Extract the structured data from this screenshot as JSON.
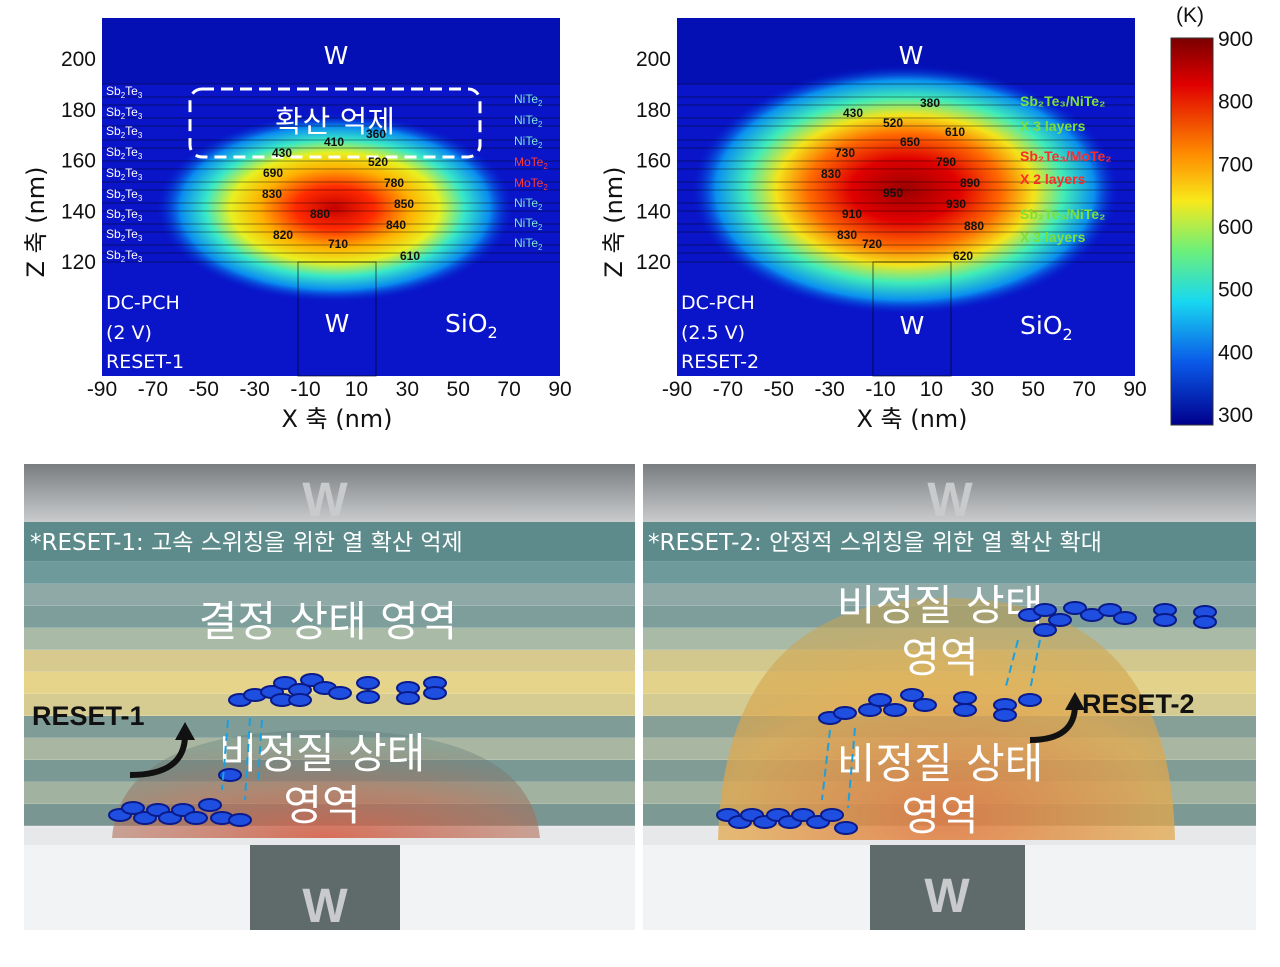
{
  "panel1": {
    "labels": {
      "w_top": "W",
      "w_bottom": "W",
      "sio2": "SiO",
      "sio2_sub": "2",
      "mode": "DC-PCH",
      "voltage": "(2 V)",
      "reset": "RESET-1",
      "box": "확산 억제"
    },
    "left_layers": [
      "Sb",
      "Sb",
      "Sb",
      "Sb",
      "Sb",
      "Sb",
      "Sb",
      "Sb",
      "Sb"
    ],
    "left_layer_suffix": "Te",
    "right_layers": [
      {
        "name": "NiTe",
        "color": "#7fe7d8"
      },
      {
        "name": "NiTe",
        "color": "#7fe7d8"
      },
      {
        "name": "NiTe",
        "color": "#7fe7d8"
      },
      {
        "name": "MoTe",
        "color": "#ff3b3b"
      },
      {
        "name": "MoTe",
        "color": "#ff3b3b"
      },
      {
        "name": "NiTe",
        "color": "#7fe7d8"
      },
      {
        "name": "NiTe",
        "color": "#7fe7d8"
      },
      {
        "name": "NiTe",
        "color": "#7fe7d8"
      }
    ],
    "temps": [
      "410",
      "360",
      "430",
      "520",
      "690",
      "780",
      "830",
      "850",
      "880",
      "840",
      "820",
      "710",
      "610"
    ]
  },
  "panel2": {
    "labels": {
      "w_top": "W",
      "w_bottom": "W",
      "sio2": "SiO",
      "sio2_sub": "2",
      "mode": "DC-PCH",
      "voltage": "(2.5 V)",
      "reset": "RESET-2"
    },
    "stack": [
      {
        "text": "Sb₂Te₃/NiTe₂",
        "color": "#7fdf3a"
      },
      {
        "text": "X 3 layers",
        "color": "#7fdf3a"
      },
      {
        "text": "Sb₂Te₃/MoTe₂",
        "color": "#ff2a2a"
      },
      {
        "text": "X 2 layers",
        "color": "#ff2a2a"
      },
      {
        "text": "Sb₂Te₃/NiTe₂",
        "color": "#7fdf3a"
      },
      {
        "text": "X 3 layers",
        "color": "#7fdf3a"
      }
    ],
    "temps": [
      "380",
      "430",
      "520",
      "610",
      "650",
      "730",
      "790",
      "830",
      "890",
      "950",
      "930",
      "910",
      "880",
      "830",
      "720",
      "620"
    ]
  },
  "axes": {
    "xlabel": "X 축 (nm)",
    "ylabel": "Z 축 (nm)",
    "xticks": [
      "-90",
      "-70",
      "-50",
      "-30",
      "-10",
      "10",
      "30",
      "50",
      "70",
      "90"
    ],
    "yticks": [
      "200",
      "180",
      "160",
      "140",
      "120"
    ]
  },
  "colorbar": {
    "unit": "(K)",
    "ticks": [
      "900",
      "800",
      "700",
      "600",
      "500",
      "400",
      "300"
    ]
  },
  "bottom_left": {
    "w_top": "W",
    "w_bottom": "W",
    "caption": "*RESET-1: 고속 스위칭을 위한 열 확산 억제",
    "region1": "결정 상태 영역",
    "region2a": "비정질 상태",
    "region2b": "영역",
    "arrow": "RESET-1"
  },
  "bottom_right": {
    "w_top": "W",
    "w_bottom": "W",
    "caption": "*RESET-2: 안정적 스위칭을 위한 열 확산 확대",
    "region1a": "비정질 상태",
    "region1b": "영역",
    "region2a": "비정질 상태",
    "region2b": "영역",
    "arrow": "RESET-2"
  },
  "colors": {
    "cold": "#00008b",
    "hot": "#8b0000",
    "accent": "#0a2fd6"
  }
}
